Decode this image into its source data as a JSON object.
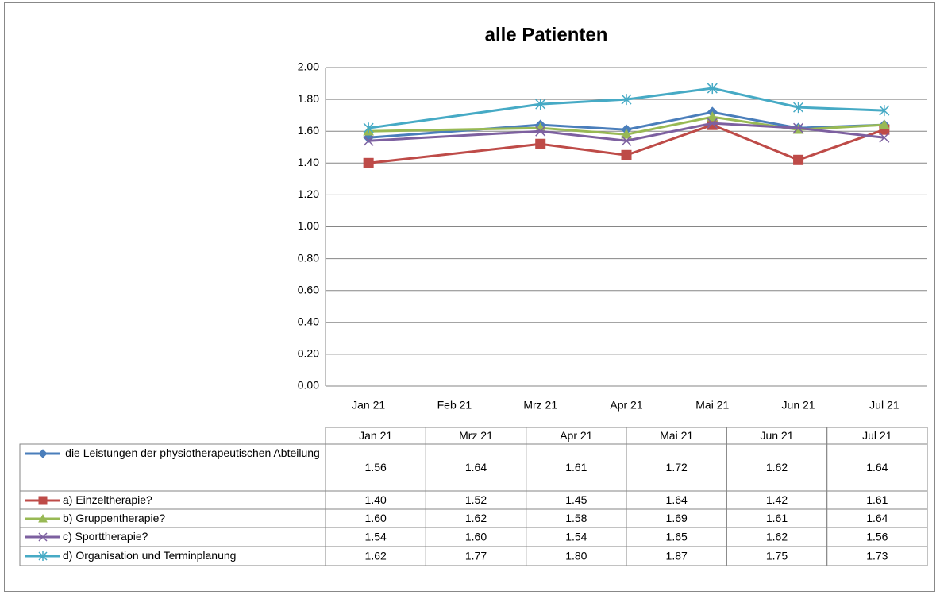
{
  "chart_data": {
    "type": "line",
    "title": "alle Patienten",
    "categories": [
      "Jan 21",
      "Feb 21",
      "Mrz 21",
      "Apr 21",
      "Mai 21",
      "Jun 21",
      "Jul 21"
    ],
    "series": [
      {
        "name": "die Leistungen der physiotherapeutischen Abteilung",
        "color": "#4a7ebb",
        "marker": "diamond",
        "values": [
          1.56,
          null,
          1.64,
          1.61,
          1.72,
          1.62,
          1.64
        ],
        "value_labels": [
          "1.56",
          null,
          "1.64",
          "1.61",
          "1.72",
          "1.62",
          "1.64"
        ]
      },
      {
        "name": "a) Einzeltherapie?",
        "color": "#be4b48",
        "marker": "square",
        "values": [
          1.4,
          null,
          1.52,
          1.45,
          1.64,
          1.42,
          1.61
        ],
        "value_labels": [
          "1.40",
          null,
          "1.52",
          "1.45",
          "1.64",
          "1.42",
          "1.61"
        ]
      },
      {
        "name": "b) Gruppentherapie?",
        "color": "#98b954",
        "marker": "triangle",
        "values": [
          1.6,
          null,
          1.62,
          1.58,
          1.69,
          1.61,
          1.64
        ],
        "value_labels": [
          "1.60",
          null,
          "1.62",
          "1.58",
          "1.69",
          "1.61",
          "1.64"
        ]
      },
      {
        "name": "c) Sporttherapie?",
        "color": "#7d60a0",
        "marker": "x",
        "values": [
          1.54,
          null,
          1.6,
          1.54,
          1.65,
          1.62,
          1.56
        ],
        "value_labels": [
          "1.54",
          null,
          "1.60",
          "1.54",
          "1.65",
          "1.62",
          "1.56"
        ]
      },
      {
        "name": "d) Organisation und Terminplanung",
        "color": "#46aac5",
        "marker": "asterisk",
        "values": [
          1.62,
          null,
          1.77,
          1.8,
          1.87,
          1.75,
          1.73
        ],
        "value_labels": [
          "1.62",
          null,
          "1.77",
          "1.80",
          "1.87",
          "1.75",
          "1.73"
        ]
      }
    ],
    "connect_gaps": true,
    "ylim": [
      0,
      2
    ],
    "yticks": [
      {
        "value": 0,
        "label": "0.00"
      },
      {
        "value": 0.2,
        "label": "0.20"
      },
      {
        "value": 0.4,
        "label": "0.40"
      },
      {
        "value": 0.6,
        "label": "0.60"
      },
      {
        "value": 0.8,
        "label": "0.80"
      },
      {
        "value": 1,
        "label": "1.00"
      },
      {
        "value": 1.2,
        "label": "1.20"
      },
      {
        "value": 1.4,
        "label": "1.40"
      },
      {
        "value": 1.6,
        "label": "1.60"
      },
      {
        "value": 1.8,
        "label": "1.80"
      },
      {
        "value": 2,
        "label": "2.00"
      }
    ],
    "grid": true,
    "data_table": true
  }
}
